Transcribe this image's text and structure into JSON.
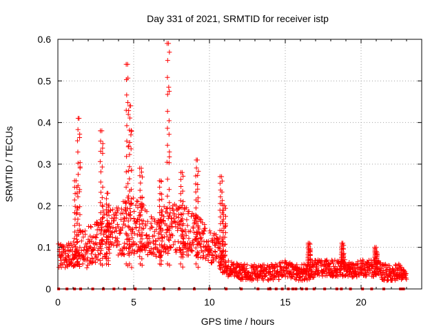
{
  "chart_data": {
    "type": "scatter",
    "title": "Day 331 of 2021, SRMTID for receiver istp",
    "xlabel": "GPS time / hours",
    "ylabel": "SRMTID / TECUs",
    "xlim": [
      0,
      24
    ],
    "ylim": [
      0,
      0.6
    ],
    "xticks": [
      0,
      5,
      10,
      15,
      20
    ],
    "yticks": [
      0,
      0.1,
      0.2,
      0.3,
      0.4,
      0.5,
      0.6
    ],
    "xtick_labels": [
      "0",
      "5",
      "10",
      "15",
      "20"
    ],
    "ytick_labels": [
      "0",
      "0.1",
      "0.2",
      "0.3",
      "0.4",
      "0.5",
      "0.6"
    ],
    "grid": true,
    "marker": "+",
    "marker_color": "#ff0000",
    "series": [
      {
        "name": "SRMTID",
        "envelope_hours": [
          0.0,
          0.5,
          1.0,
          1.5,
          2.0,
          2.5,
          3.0,
          3.5,
          4.0,
          4.5,
          5.0,
          5.5,
          6.0,
          6.5,
          7.0,
          7.5,
          8.0,
          8.5,
          9.0,
          9.5,
          10.0,
          10.5,
          11.0,
          11.5,
          12.0,
          12.5,
          13.0,
          13.5,
          14.0,
          14.5,
          15.0,
          15.5,
          16.0,
          16.5,
          17.0,
          17.5,
          18.0,
          18.5,
          19.0,
          19.5,
          20.0,
          20.5,
          21.0,
          21.5,
          22.0,
          22.5,
          23.0
        ],
        "typical": [
          0.08,
          0.08,
          0.08,
          0.1,
          0.1,
          0.11,
          0.13,
          0.13,
          0.14,
          0.15,
          0.15,
          0.15,
          0.13,
          0.12,
          0.14,
          0.15,
          0.14,
          0.14,
          0.13,
          0.12,
          0.1,
          0.1,
          0.05,
          0.05,
          0.04,
          0.04,
          0.04,
          0.04,
          0.04,
          0.04,
          0.05,
          0.04,
          0.04,
          0.04,
          0.05,
          0.05,
          0.05,
          0.05,
          0.05,
          0.04,
          0.05,
          0.05,
          0.05,
          0.04,
          0.04,
          0.04,
          0.03
        ],
        "spread": [
          0.03,
          0.03,
          0.03,
          0.05,
          0.05,
          0.05,
          0.06,
          0.06,
          0.06,
          0.07,
          0.07,
          0.06,
          0.05,
          0.05,
          0.06,
          0.06,
          0.06,
          0.06,
          0.05,
          0.05,
          0.04,
          0.04,
          0.02,
          0.02,
          0.02,
          0.02,
          0.02,
          0.02,
          0.02,
          0.02,
          0.02,
          0.02,
          0.02,
          0.02,
          0.02,
          0.02,
          0.02,
          0.02,
          0.02,
          0.02,
          0.02,
          0.02,
          0.02,
          0.02,
          0.02,
          0.02,
          0.01
        ],
        "spikes": [
          {
            "x": 1.4,
            "peak": 0.41
          },
          {
            "x": 1.2,
            "peak": 0.26
          },
          {
            "x": 2.9,
            "peak": 0.38
          },
          {
            "x": 3.3,
            "peak": 0.23
          },
          {
            "x": 4.6,
            "peak": 0.54
          },
          {
            "x": 4.8,
            "peak": 0.44
          },
          {
            "x": 5.5,
            "peak": 0.29
          },
          {
            "x": 6.8,
            "peak": 0.26
          },
          {
            "x": 7.3,
            "peak": 0.59
          },
          {
            "x": 8.2,
            "peak": 0.28
          },
          {
            "x": 9.2,
            "peak": 0.31
          },
          {
            "x": 10.8,
            "peak": 0.27
          },
          {
            "x": 11.0,
            "peak": 0.2
          },
          {
            "x": 16.6,
            "peak": 0.11
          },
          {
            "x": 18.8,
            "peak": 0.11
          },
          {
            "x": 21.0,
            "peak": 0.1
          }
        ],
        "zero_markers": [
          0.05,
          0.6,
          1.1,
          1.5,
          2.3,
          3.0,
          3.7,
          4.4,
          5.1,
          6.1,
          7.0,
          8.0,
          9.0,
          10.0,
          11.1,
          12.1,
          13.2,
          13.9,
          14.0,
          14.4,
          14.8,
          15.2,
          15.5,
          15.7,
          16.1,
          16.4,
          16.9,
          17.6,
          18.4,
          18.7,
          19.3,
          20.1,
          20.7,
          21.5,
          22.6,
          22.7,
          22.8
        ]
      }
    ]
  }
}
